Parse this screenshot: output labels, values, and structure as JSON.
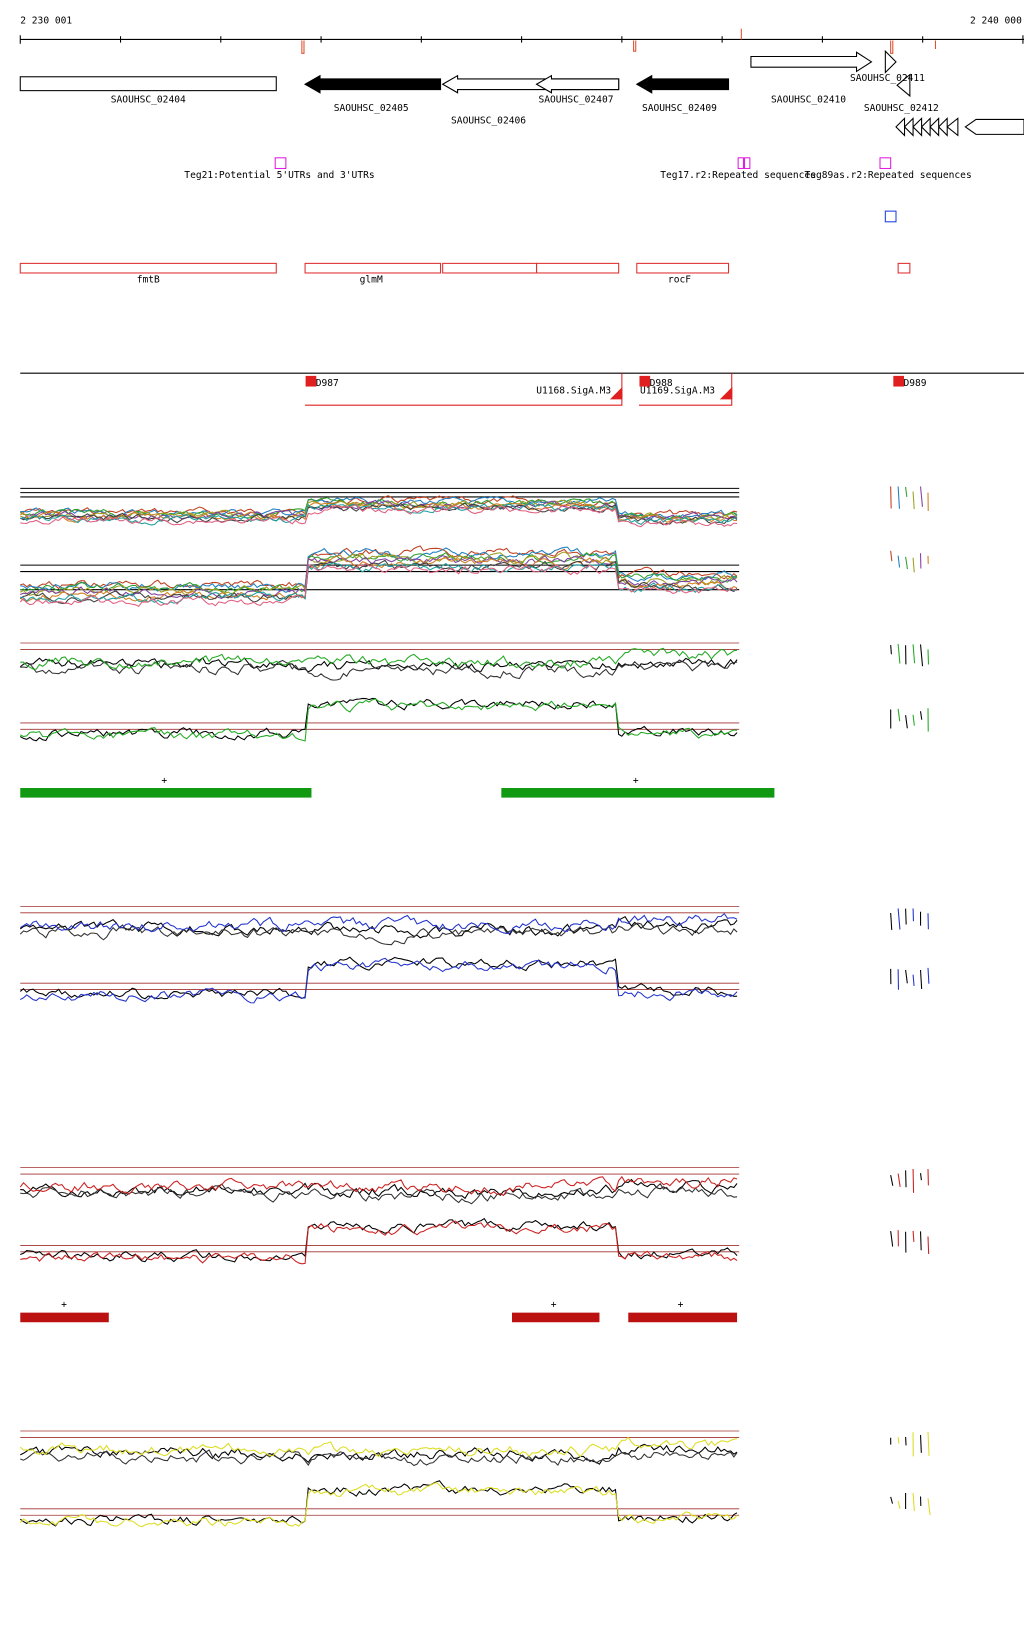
{
  "ruler": {
    "start": "2 230 001",
    "end": "2 240 000"
  },
  "genes": [
    "SAOUHSC_02404",
    "SAOUHSC_02405",
    "SAOUHSC_02406",
    "SAOUHSC_02407",
    "SAOUHSC_02409",
    "SAOUHSC_02410",
    "SAOUHSC_02411",
    "SAOUHSC_02412"
  ],
  "features": [
    "Teg21:Potential 5'UTRs and 3'UTRs",
    "Teg17.r2:Repeated sequences",
    "Teg89as.r2:Repeated sequences"
  ],
  "operons": [
    "fmtB",
    "glmM",
    "rocF"
  ],
  "promoters": [
    "D987",
    "D988",
    "D989"
  ],
  "transcripts": [
    "U1168.SigA.M3",
    "U1169.SigA.M3"
  ],
  "strand_marks": [
    "+",
    "+",
    "+",
    "+",
    "+"
  ]
}
